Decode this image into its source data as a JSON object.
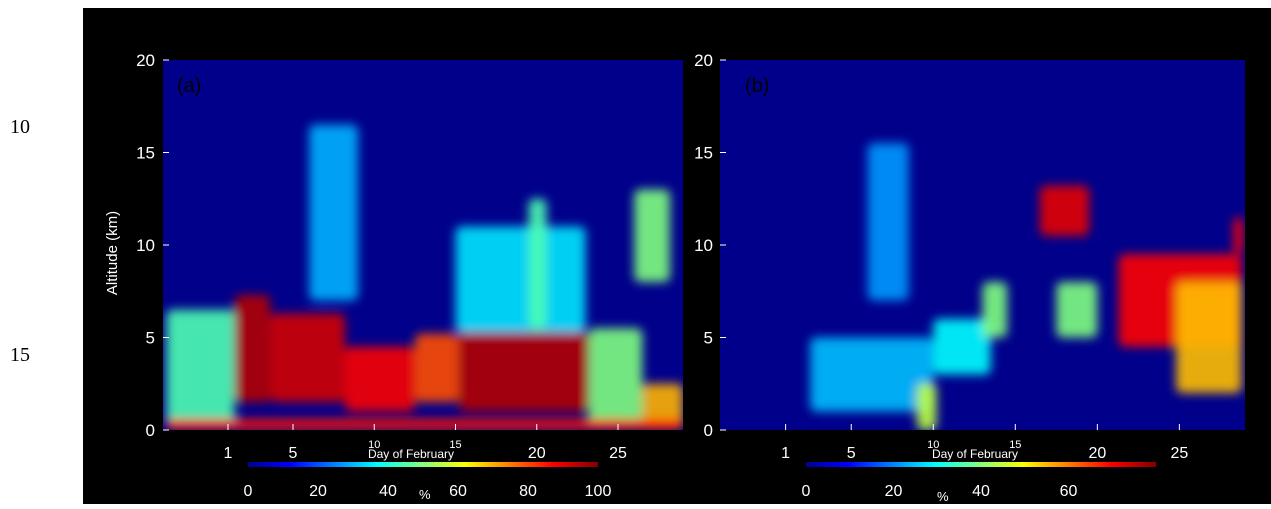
{
  "line_numbers": [
    "10",
    "15"
  ],
  "figure": {
    "x_label": "Day of February",
    "y_label": "Altitude (km)",
    "colorbar_unit": "%",
    "colors": {
      "background": "#000000",
      "plot_base": "#00008b",
      "axis_text": "#ffffff"
    }
  },
  "chart_data": [
    {
      "type": "heatmap",
      "panel_label": "(a)",
      "xlabel": "Day of February",
      "ylabel": "Altitude (km)",
      "x_ticks": [
        "1",
        "5",
        "10",
        "15",
        "20",
        "25"
      ],
      "y_ticks": [
        "0",
        "5",
        "10",
        "15",
        "20"
      ],
      "xlim": [
        -3,
        29
      ],
      "ylim": [
        0,
        20
      ],
      "colorbar": {
        "label": "%",
        "ticks": [
          "0",
          "20",
          "40",
          "60",
          "80",
          "100"
        ],
        "range": [
          0,
          100
        ]
      },
      "features": [
        {
          "x": [
            1.4,
            3.6
          ],
          "y": [
            1.5,
            7.3
          ],
          "level": 95
        },
        {
          "x": [
            3.6,
            8.2
          ],
          "y": [
            1.5,
            6.3
          ],
          "level": 92
        },
        {
          "x": [
            8.2,
            12.5
          ],
          "y": [
            1,
            4.5
          ],
          "level": 88
        },
        {
          "x": [
            12.5,
            15.2
          ],
          "y": [
            1.5,
            5.2
          ],
          "level": 80
        },
        {
          "x": [
            15.2,
            23.2
          ],
          "y": [
            1,
            5.3
          ],
          "level": 95
        },
        {
          "x": [
            -2.8,
            1.4
          ],
          "y": [
            0.3,
            6.5
          ],
          "level": 45
        },
        {
          "x": [
            23.2,
            26.5
          ],
          "y": [
            0.2,
            5.5
          ],
          "level": 50
        },
        {
          "x": [
            26.5,
            29
          ],
          "y": [
            0,
            2.5
          ],
          "level": 70
        },
        {
          "x": [
            6,
            9
          ],
          "y": [
            7,
            16.5
          ],
          "level": 30
        },
        {
          "x": [
            15,
            23
          ],
          "y": [
            5.3,
            11
          ],
          "level": 35
        },
        {
          "x": [
            19.5,
            20.6
          ],
          "y": [
            5.5,
            12.5
          ],
          "level": 45
        },
        {
          "x": [
            26,
            28.2
          ],
          "y": [
            8,
            13
          ],
          "level": 50
        },
        {
          "x": [
            -2.8,
            29
          ],
          "y": [
            0,
            0.6
          ],
          "level": 85
        }
      ]
    },
    {
      "type": "heatmap",
      "panel_label": "(b)",
      "xlabel": "Day of February",
      "ylabel": "",
      "x_ticks": [
        "1",
        "5",
        "10",
        "15",
        "20",
        "25"
      ],
      "y_ticks": [
        "0",
        "5",
        "10",
        "15",
        "20"
      ],
      "xlim": [
        -3,
        29
      ],
      "ylim": [
        0,
        20
      ],
      "colorbar": {
        "label": "%",
        "ticks": [
          "0",
          "20",
          "40",
          "60"
        ],
        "range": [
          0,
          80
        ]
      },
      "features": [
        {
          "x": [
            16.5,
            19.5
          ],
          "y": [
            10.5,
            13.2
          ],
          "level": 72
        },
        {
          "x": [
            21.3,
            28.8
          ],
          "y": [
            4.5,
            9.5
          ],
          "level": 70
        },
        {
          "x": [
            24.8,
            28.8
          ],
          "y": [
            2,
            8
          ],
          "level": 55
        },
        {
          "x": [
            2.5,
            10
          ],
          "y": [
            1,
            5
          ],
          "level": 25
        },
        {
          "x": [
            6,
            8.5
          ],
          "y": [
            7,
            15.5
          ],
          "level": 22
        },
        {
          "x": [
            10,
            13.5
          ],
          "y": [
            3,
            6
          ],
          "level": 30
        },
        {
          "x": [
            13,
            14.5
          ],
          "y": [
            5,
            8
          ],
          "level": 40
        },
        {
          "x": [
            17.5,
            20
          ],
          "y": [
            5,
            8
          ],
          "level": 40
        },
        {
          "x": [
            28.3,
            28.9
          ],
          "y": [
            9.5,
            11.5
          ],
          "level": 70
        },
        {
          "x": [
            9,
            10.2
          ],
          "y": [
            0,
            2.5
          ],
          "level": 45
        }
      ]
    }
  ]
}
